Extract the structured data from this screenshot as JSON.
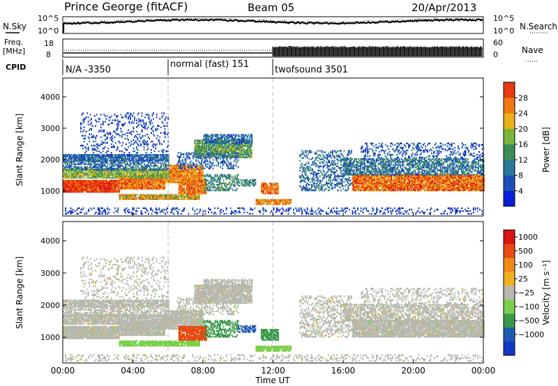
{
  "header": {
    "station": "Prince George (fitACF)",
    "beam": "Beam 05",
    "date": "20/Apr/2013"
  },
  "top_panels": {
    "nsky_label": "N.Sky",
    "nsearch_label": "N.Search",
    "freq_label_1": "Freq.",
    "freq_label_2": "[MHz]",
    "nave_label": "Nave",
    "cpid_label": "CPID",
    "noise_left_ticks": [
      "10^5",
      "10^0"
    ],
    "noise_right_ticks": [
      "10^5",
      "10^0"
    ],
    "freq_ticks": [
      "18",
      "8"
    ],
    "nave_ticks": [
      "60",
      "0"
    ]
  },
  "cpid_segments": [
    {
      "label": "N/A -3350",
      "start_hour": 0
    },
    {
      "label": "normal (fast) 151",
      "start_hour": 6
    },
    {
      "label": "twofsound 3501",
      "start_hour": 12
    }
  ],
  "colors": {
    "power": [
      "#0a1fd6",
      "#1e4fb8",
      "#2a7a9a",
      "#3c8c5a",
      "#7ab53a",
      "#e8b21a",
      "#f07a10",
      "#e83a10",
      "#d81414"
    ],
    "velocity": [
      "#d81414",
      "#e84a10",
      "#f08a1a",
      "#f0b020",
      "#b8b8b0",
      "#7ad04a",
      "#3a9a4a",
      "#1e5ab0",
      "#1438c8"
    ]
  },
  "chart_data": [
    {
      "type": "heatmap",
      "name": "power",
      "ylabel": "Slant Range [km]",
      "yticks": [
        "1000",
        "2000",
        "3000",
        "4000"
      ],
      "ylim": [
        200,
        4600
      ],
      "xlim": [
        0,
        24
      ],
      "colorbar_label": "Power [dB]",
      "colorbar_ticks": [
        "4",
        "8",
        "12",
        "16",
        "20",
        "24",
        "28"
      ],
      "colorbar_range": [
        0,
        32
      ]
    },
    {
      "type": "heatmap",
      "name": "velocity",
      "ylabel": "Slant Range [km]",
      "yticks": [
        "1000",
        "2000",
        "3000",
        "4000"
      ],
      "ylim": [
        200,
        4600
      ],
      "xlim": [
        0,
        24
      ],
      "xlabel": "Time UT",
      "xticks": [
        "00:00",
        "04:00",
        "08:00",
        "12:00",
        "16:00",
        "20:00",
        "00:00"
      ],
      "colorbar_label": "Velocity [m s⁻¹]",
      "colorbar_ticks": [
        "1000",
        "500",
        "100",
        "25",
        "−25",
        "−100",
        "−500",
        "−1000"
      ]
    }
  ]
}
